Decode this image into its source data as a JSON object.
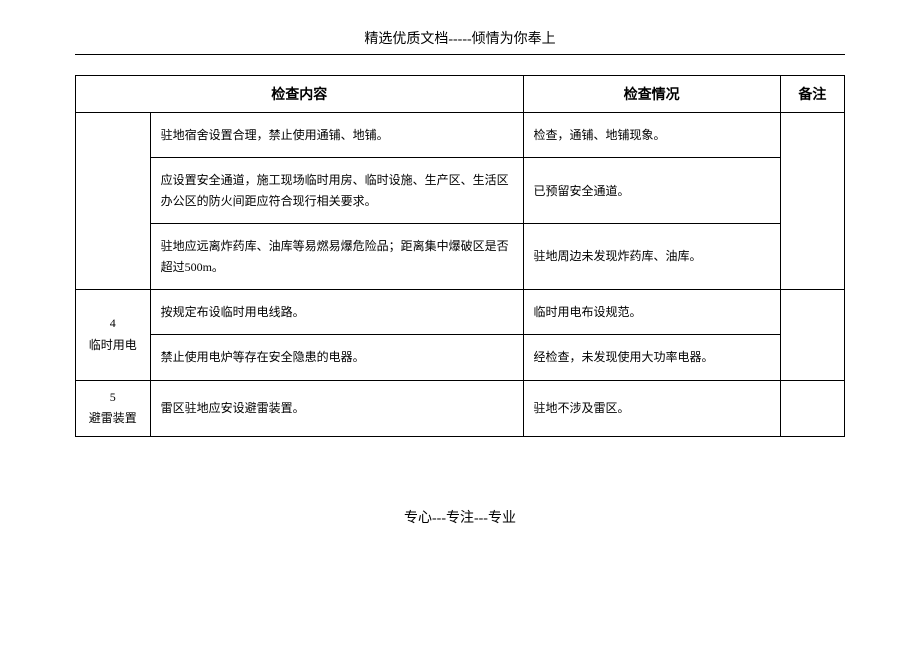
{
  "header": "精选优质文档-----倾情为你奉上",
  "footer": "专心---专注---专业",
  "table": {
    "columns": {
      "content": "检查内容",
      "status": "检查情况",
      "remark": "备注"
    },
    "group_unlabeled": {
      "rows": [
        {
          "content": "驻地宿舍设置合理，禁止使用通铺、地铺。",
          "status": "检查，通铺、地铺现象。"
        },
        {
          "content": "应设置安全通道，施工现场临时用房、临时设施、生产区、生活区办公区的防火间距应符合现行相关要求。",
          "status": "已预留安全通道。"
        },
        {
          "content": "驻地应远离炸药库、油库等易燃易爆危险品；距离集中爆破区是否超过500m。",
          "status": "驻地周边未发现炸药库、油库。"
        }
      ]
    },
    "group4": {
      "index": "4",
      "label": "临时用电",
      "rows": [
        {
          "content": "按规定布设临时用电线路。",
          "status": "临时用电布设规范。"
        },
        {
          "content": "禁止使用电炉等存在安全隐患的电器。",
          "status": "经检查，未发现使用大功率电器。"
        }
      ]
    },
    "group5": {
      "index": "5",
      "label": "避雷装置",
      "rows": [
        {
          "content": "雷区驻地应安设避雷装置。",
          "status": "驻地不涉及雷区。"
        }
      ]
    }
  }
}
